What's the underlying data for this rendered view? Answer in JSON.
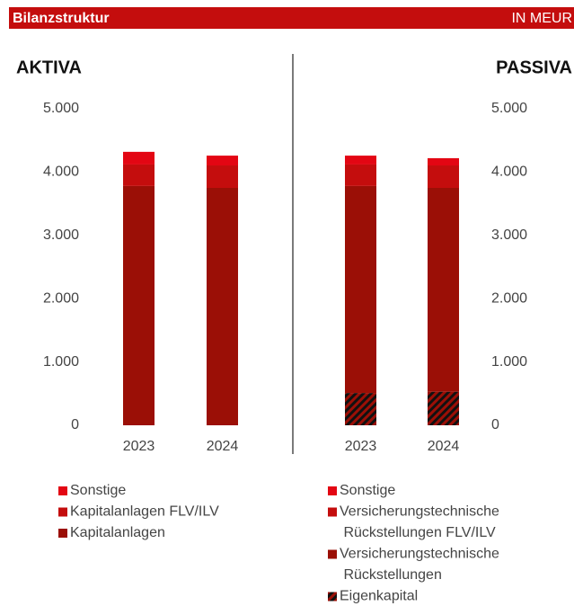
{
  "header": {
    "title": "Bilanzstruktur",
    "unit": "IN MEUR"
  },
  "chart_data": [
    {
      "type": "bar",
      "stacked": true,
      "title": "AKTIVA",
      "categories": [
        "2023",
        "2024"
      ],
      "series": [
        {
          "name": "Kapitalanlagen",
          "color": "#9b0f06",
          "values": [
            3780,
            3750
          ]
        },
        {
          "name": "Kapitalanlagen FLV/ILV",
          "color": "#c40d0d",
          "values": [
            340,
            355
          ]
        },
        {
          "name": "Sonstige",
          "color": "#e30613",
          "values": [
            200,
            155
          ]
        }
      ],
      "ylim": [
        0,
        5000
      ],
      "yticks": [
        0,
        {
          "value": 1000,
          "label": "1.000"
        },
        {
          "value": 2000,
          "label": "2.000"
        },
        {
          "value": 3000,
          "label": "3.000"
        },
        {
          "value": 4000,
          "label": "4.000"
        },
        {
          "value": 5000,
          "label": "5.000"
        }
      ],
      "grid": false
    },
    {
      "type": "bar",
      "stacked": true,
      "title": "PASSIVA",
      "categories": [
        "2023",
        "2024"
      ],
      "series": [
        {
          "name": "Eigenkapital",
          "color": "#9b0f06",
          "hatch": true,
          "values": [
            510,
            530
          ]
        },
        {
          "name": "Versicherungstechnische Rückstellungen",
          "color": "#9b0f06",
          "values": [
            3270,
            3220
          ]
        },
        {
          "name": "Versicherungstechnische Rückstellungen FLV/ILV",
          "color": "#c40d0d",
          "values": [
            340,
            355
          ]
        },
        {
          "name": "Sonstige",
          "color": "#e30613",
          "values": [
            140,
            115
          ]
        }
      ],
      "ylim": [
        0,
        5000
      ],
      "yticks": [
        0,
        {
          "value": 1000,
          "label": "1.000"
        },
        {
          "value": 2000,
          "label": "2.000"
        },
        {
          "value": 3000,
          "label": "3.000"
        },
        {
          "value": 4000,
          "label": "4.000"
        },
        {
          "value": 5000,
          "label": "5.000"
        }
      ],
      "grid": false
    }
  ]
}
